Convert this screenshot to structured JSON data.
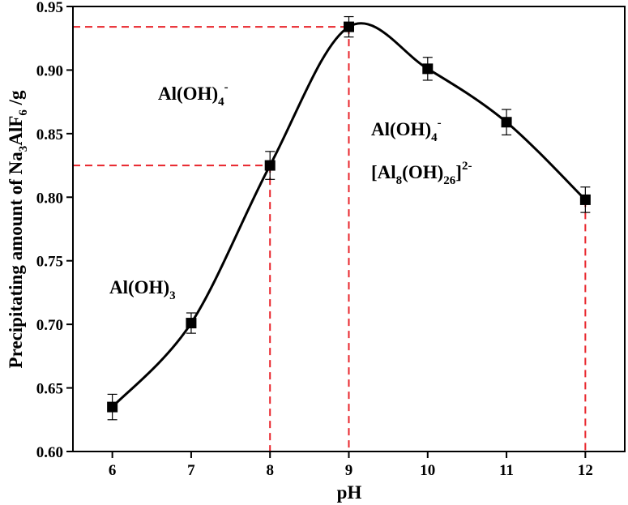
{
  "chart_data": {
    "type": "line",
    "xlabel": "pH",
    "ylabel": {
      "main": "Precipitating amount of Na",
      "sub1": "3",
      "mid": "AlF",
      "sub2": "6",
      "tail": " /g"
    },
    "xlim": [
      5.5,
      12.5
    ],
    "ylim": [
      0.6,
      0.95
    ],
    "xticks": [
      6,
      7,
      8,
      9,
      10,
      11,
      12
    ],
    "yticks": [
      "0.60",
      "0.65",
      "0.70",
      "0.75",
      "0.80",
      "0.85",
      "0.90",
      "0.95"
    ],
    "grid": false,
    "series": [
      {
        "color": "#000000",
        "marker": "square",
        "x": [
          6,
          7,
          8,
          9,
          10,
          11,
          12
        ],
        "y": [
          0.635,
          0.701,
          0.825,
          0.934,
          0.901,
          0.859,
          0.798
        ],
        "err": [
          0.01,
          0.008,
          0.011,
          0.008,
          0.009,
          0.01,
          0.01
        ]
      }
    ],
    "reference_lines": [
      {
        "x": 8,
        "y": 0.825,
        "color": "#e8242b"
      },
      {
        "x": 9,
        "y": 0.934,
        "color": "#e8242b"
      },
      {
        "x": 12,
        "y": 0.798,
        "color": "#e8242b"
      }
    ],
    "annotations": {
      "a1": {
        "main": "Al(OH)",
        "sub": "4",
        "sup": "-"
      },
      "a2": {
        "main": "Al(OH)",
        "sub": "4",
        "sup": "-"
      },
      "a3": {
        "main": "[Al",
        "sub1": "8",
        "mid": "(OH)",
        "sub2": "26",
        "tail": "]",
        "sup": "2-"
      },
      "a4": {
        "main": "Al(OH)",
        "sub": "3"
      }
    }
  }
}
